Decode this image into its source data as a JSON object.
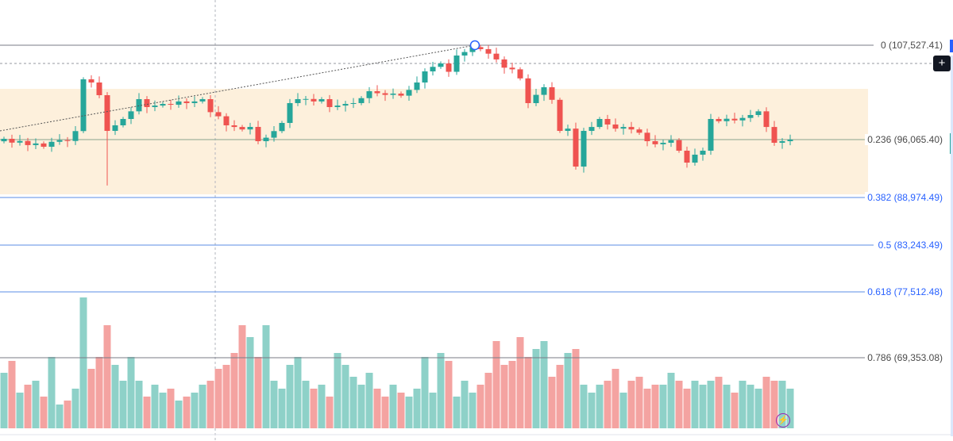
{
  "chart_data": {
    "type": "candlestick",
    "title": "",
    "fib_levels": [
      {
        "ratio": "0",
        "price": "107,527.41",
        "label": "0 (107,527.41)",
        "color": "#787b86",
        "text_color": "#4a4a4a"
      },
      {
        "ratio": "0.236",
        "price": "96,065.40",
        "label": "0.236 (96,065.40)",
        "color": "#89a58e",
        "text_color": "#4a4a4a"
      },
      {
        "ratio": "0.382",
        "price": "88,974.49",
        "label": "0.382 (88,974.49)",
        "color": "#5b8ee6",
        "text_color": "#2962ff"
      },
      {
        "ratio": "0.5",
        "price": "83,243.49",
        "label": "0.5 (83,243.49)",
        "color": "#5b8ee6",
        "text_color": "#2962ff"
      },
      {
        "ratio": "0.618",
        "price": "77,512.48",
        "label": "0.618 (77,512.48)",
        "color": "#5b8ee6",
        "text_color": "#2962ff"
      },
      {
        "ratio": "0.786",
        "price": "69,353.08",
        "label": "0.786 (69,353.08)",
        "color": "#787b86",
        "text_color": "#4a4a4a"
      }
    ],
    "closes": [
      96164,
      95700,
      95900,
      95400,
      95600,
      95200,
      95800,
      96000,
      95900,
      97100,
      103386,
      103000,
      101460,
      97126,
      97800,
      98571,
      99500,
      100979,
      100016,
      100200,
      100400,
      100300,
      100700,
      100500,
      100700,
      100979,
      99400,
      98900,
      97800,
      97600,
      97300,
      97608,
      95875,
      96300,
      97100,
      98090,
      100500,
      100979,
      101000,
      100700,
      100979,
      100016,
      100200,
      100400,
      100500,
      101100,
      101942,
      101700,
      101500,
      101653,
      101400,
      102100,
      103000,
      104349,
      104900,
      105312,
      104300,
      106276,
      106700,
      107300,
      107046,
      106500,
      105800,
      104800,
      104600,
      103500,
      100497,
      101500,
      102423,
      100900,
      97126,
      97400,
      92793,
      97126,
      97600,
      98571,
      97900,
      97400,
      97600,
      97300,
      96900,
      95875,
      95500,
      95683,
      96000,
      94719,
      93274,
      94237,
      94719,
      98571,
      98300,
      98600,
      98400,
      98700,
      99053,
      99500,
      97600,
      95683,
      95875,
      96065
    ],
    "volumes": [
      70,
      85,
      45,
      55,
      60,
      40,
      90,
      30,
      35,
      50,
      165,
      75,
      90,
      130,
      80,
      60,
      90,
      60,
      40,
      55,
      45,
      50,
      35,
      40,
      45,
      55,
      60,
      75,
      80,
      95,
      130,
      115,
      90,
      130,
      60,
      50,
      80,
      90,
      60,
      50,
      55,
      40,
      95,
      80,
      65,
      55,
      70,
      50,
      40,
      55,
      45,
      40,
      50,
      90,
      45,
      95,
      85,
      40,
      60,
      45,
      55,
      70,
      110,
      80,
      85,
      115,
      90,
      100,
      110,
      65,
      80,
      95,
      100,
      55,
      45,
      55,
      60,
      75,
      45,
      60,
      65,
      50,
      55,
      55,
      70,
      60,
      50,
      60,
      55,
      60,
      65,
      55,
      45,
      60,
      55,
      50,
      65,
      60,
      60,
      50
    ],
    "colors": {
      "up": "#26a69a",
      "down": "#ef5350",
      "up_volume": "#8ed1c8",
      "down_volume": "#f4a3a1",
      "zone": "#fdf0dc"
    }
  },
  "controls": {
    "add_button": "+",
    "alert_icon": "lightning-icon"
  }
}
